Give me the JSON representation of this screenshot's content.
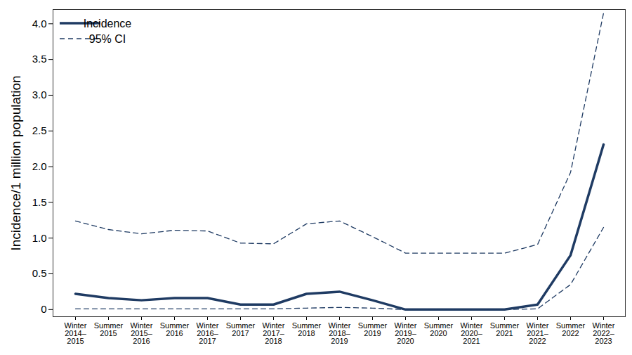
{
  "chart_data": {
    "type": "line",
    "y_label": "Incidence/1 million population",
    "categories": [
      "Winter 2014–2015",
      "Summer 2015",
      "Winter 2015–2016",
      "Summer 2016",
      "Winter 2016–2017",
      "Summer 2017",
      "Winter 2017–2018",
      "Summer 2018",
      "Winter 2018–2019",
      "Summer 2019",
      "Winter 2019–2020",
      "Summer 2020",
      "Winter 2020–2021",
      "Summer 2021",
      "Winter 2021–2022",
      "Summer 2022",
      "Winter 2022–2023"
    ],
    "series": [
      {
        "name": "Incidence",
        "color": "#1f3b63",
        "line_style": "solid",
        "values": [
          0.22,
          0.16,
          0.13,
          0.16,
          0.16,
          0.07,
          0.07,
          0.22,
          0.25,
          0.13,
          0,
          0,
          0,
          0,
          0.07,
          0.76,
          2.31
        ]
      },
      {
        "name": "95% CI",
        "color": "#1f3b63",
        "line_style": "dashed",
        "values": [
          1.24,
          1.12,
          1.06,
          1.11,
          1.1,
          0.93,
          0.92,
          1.2,
          1.24,
          1.02,
          0.79,
          0.79,
          0.79,
          0.79,
          0.91,
          1.92,
          4.15
        ]
      },
      {
        "name": "95% CI",
        "color": "#1f3b63",
        "line_style": "dashed",
        "values": [
          0.01,
          0.01,
          0.01,
          0.01,
          0.01,
          0.01,
          0.01,
          0.02,
          0.03,
          0.02,
          0,
          0,
          0,
          0,
          0.01,
          0.35,
          1.15
        ]
      }
    ],
    "ylim": [
      -0.1,
      4.2
    ],
    "yticks": [
      0,
      0.5,
      {
        "value": 1,
        "label": "1.0"
      },
      1.5,
      {
        "value": 2,
        "label": "2.0"
      },
      2.5,
      {
        "value": 3,
        "label": "3.0"
      },
      3.5,
      {
        "value": 4,
        "label": "4.0"
      }
    ],
    "legend": "upper left",
    "grid": false
  }
}
